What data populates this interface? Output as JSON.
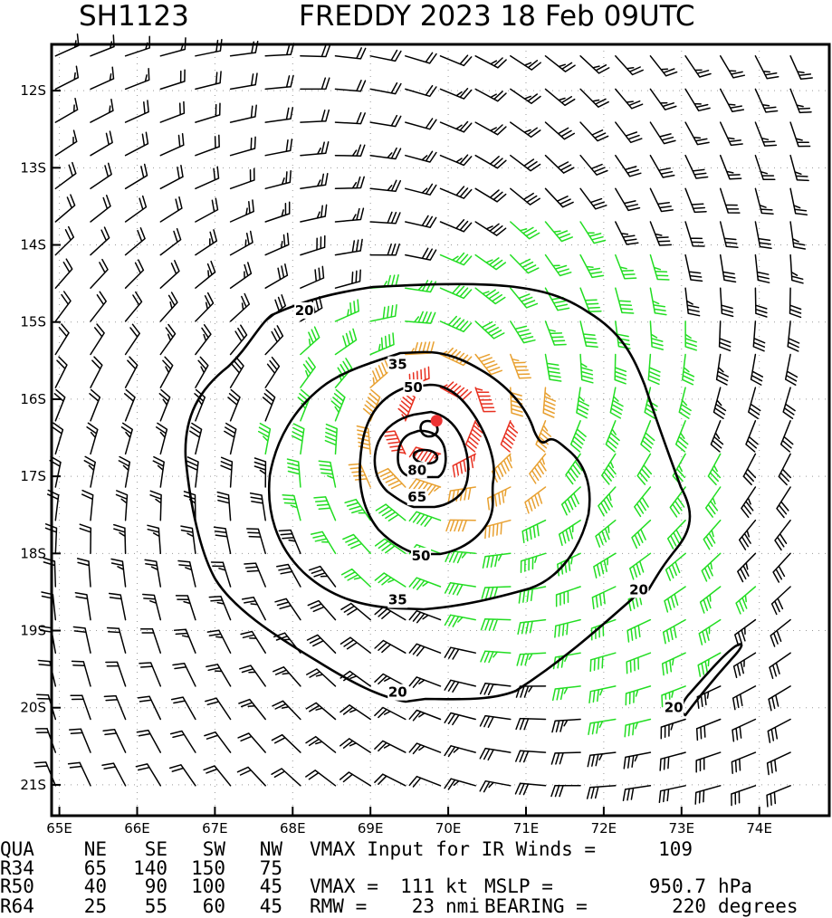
{
  "title": {
    "storm_id": "SH1123",
    "storm_desc": "FREDDY 2023 18 Feb 09UTC"
  },
  "chart_data": {
    "type": "wind-barb-map",
    "title": "SH1123 FREDDY 2023 18 Feb 09UTC",
    "x_axis": {
      "unit": "deg E",
      "range": [
        64.9,
        74.9
      ],
      "ticks": [
        65,
        66,
        67,
        68,
        69,
        70,
        71,
        72,
        73,
        74
      ],
      "tick_labels": [
        "65E",
        "66E",
        "67E",
        "68E",
        "69E",
        "70E",
        "71E",
        "72E",
        "73E",
        "74E"
      ]
    },
    "y_axis": {
      "unit": "deg S",
      "range": [
        11.4,
        21.4
      ],
      "ticks": [
        12,
        13,
        14,
        15,
        16,
        17,
        18,
        19,
        20,
        21
      ],
      "tick_labels": [
        "12S",
        "13S",
        "14S",
        "15S",
        "16S",
        "17S",
        "18S",
        "19S",
        "20S",
        "21S"
      ]
    },
    "storm_center": {
      "lon": 69.85,
      "lat": 16.28
    },
    "contours": [
      {
        "level": 20,
        "label": "20",
        "color": "#000000"
      },
      {
        "level": 35,
        "label": "35",
        "color": "#000000"
      },
      {
        "level": 50,
        "label": "50",
        "color": "#000000"
      },
      {
        "level": 65,
        "label": "65",
        "color": "#000000"
      },
      {
        "level": 80,
        "label": "80",
        "color": "#000000"
      }
    ],
    "contour_labels": [
      {
        "text": "20",
        "lon": 68.15,
        "lat": 14.85
      },
      {
        "text": "20",
        "lon": 69.35,
        "lat": 19.8
      },
      {
        "text": "20",
        "lon": 72.45,
        "lat": 18.47
      },
      {
        "text": "20",
        "lon": 72.9,
        "lat": 20.0
      },
      {
        "text": "35",
        "lon": 69.35,
        "lat": 15.55
      },
      {
        "text": "35",
        "lon": 69.35,
        "lat": 18.6
      },
      {
        "text": "50",
        "lon": 69.55,
        "lat": 15.85
      },
      {
        "text": "50",
        "lon": 69.65,
        "lat": 18.03
      },
      {
        "text": "65",
        "lon": 69.6,
        "lat": 17.27
      },
      {
        "text": "80",
        "lon": 69.6,
        "lat": 16.92
      }
    ],
    "barb_color_classes": [
      {
        "min_kt": 0,
        "max_kt": 34,
        "color": "#000000"
      },
      {
        "min_kt": 34,
        "max_kt": 50,
        "color": "#22dd22"
      },
      {
        "min_kt": 50,
        "max_kt": 64,
        "color": "#e8a030"
      },
      {
        "min_kt": 64,
        "max_kt": 999,
        "color": "#e83020"
      }
    ],
    "barb_grid": {
      "lon_step": 0.45,
      "lat_step": 0.43,
      "rotation": "clockwise"
    },
    "vmax_ir_input_kt": 109,
    "vmax_kt": 111,
    "mslp_hpa": 950.7,
    "rmw_nmi": 23,
    "bearing_deg": 220,
    "radii": {
      "quadrants": [
        "NE",
        "SE",
        "SW",
        "NW"
      ],
      "R34": [
        65,
        140,
        150,
        75
      ],
      "R50": [
        40,
        90,
        100,
        45
      ],
      "R64": [
        25,
        55,
        60,
        45
      ]
    }
  },
  "info": {
    "qua_label": "QUA",
    "quadrant_labels": [
      "NE",
      "SE",
      "SW",
      "NW"
    ],
    "rows": [
      {
        "label": "R34",
        "values": [
          "65",
          "140",
          "150",
          "75"
        ]
      },
      {
        "label": "R50",
        "values": [
          "40",
          "90",
          "100",
          "45"
        ]
      },
      {
        "label": "R64",
        "values": [
          "25",
          "55",
          "60",
          "45"
        ]
      }
    ],
    "vmax_input_text": "VMAX Input for IR Winds =",
    "vmax_input_value": "109",
    "vmax_text": "VMAX =",
    "vmax_value": "111",
    "kt_text": "kt",
    "mslp_text": "MSLP =",
    "mslp_value": "950.7",
    "hpa_text": "hPa",
    "rmw_text": "RMW =",
    "rmw_value": "23",
    "nmi_text": "nmi",
    "bearing_text": "BEARING =",
    "bearing_value": "220",
    "degrees_text": "degrees"
  }
}
